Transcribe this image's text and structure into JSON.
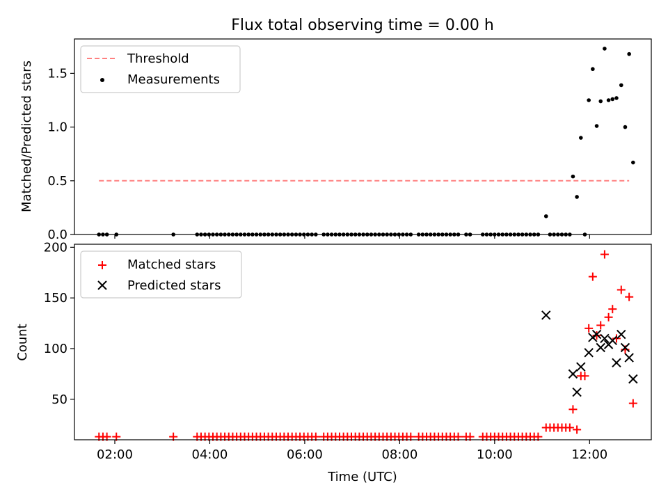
{
  "figure": {
    "title": "Flux total observing time = 0.00 h"
  },
  "chart_data": [
    {
      "type": "scatter",
      "title": "Flux total observing time = 0.00 h",
      "xlabel": "",
      "ylabel": "Matched/Predicted stars",
      "xlim": [
        "01:09",
        "13:18"
      ],
      "ylim": [
        0,
        1.82
      ],
      "xticks": [
        "02:00",
        "04:00",
        "06:00",
        "08:00",
        "10:00",
        "12:00"
      ],
      "yticks": [
        0.0,
        0.5,
        1.0,
        1.5
      ],
      "ytick_labels": [
        "0.0",
        "0.5",
        "1.0",
        "1.5"
      ],
      "grid": false,
      "legend_position": "upper left",
      "threshold": {
        "name": "Threshold",
        "value": 0.5,
        "x_start": "01:40",
        "x_end": "12:50",
        "color": "#ff8080",
        "style": "dashed"
      },
      "series": [
        {
          "name": "Measurements",
          "color": "#000000",
          "marker": "dot",
          "points": [
            [
              "01:40",
              0
            ],
            [
              "01:45",
              0
            ],
            [
              "01:50",
              0
            ],
            [
              "02:02",
              0
            ],
            [
              "03:14",
              0
            ],
            [
              "03:44",
              0
            ],
            [
              "03:49",
              0
            ],
            [
              "03:54",
              0
            ],
            [
              "03:59",
              0
            ],
            [
              "04:04",
              0
            ],
            [
              "04:09",
              0
            ],
            [
              "04:14",
              0
            ],
            [
              "04:19",
              0
            ],
            [
              "04:24",
              0
            ],
            [
              "04:29",
              0
            ],
            [
              "04:34",
              0
            ],
            [
              "04:39",
              0
            ],
            [
              "04:44",
              0
            ],
            [
              "04:49",
              0
            ],
            [
              "04:54",
              0
            ],
            [
              "04:59",
              0
            ],
            [
              "05:04",
              0
            ],
            [
              "05:09",
              0
            ],
            [
              "05:14",
              0
            ],
            [
              "05:19",
              0
            ],
            [
              "05:24",
              0
            ],
            [
              "05:29",
              0
            ],
            [
              "05:34",
              0
            ],
            [
              "05:39",
              0
            ],
            [
              "05:44",
              0
            ],
            [
              "05:49",
              0
            ],
            [
              "05:54",
              0
            ],
            [
              "05:59",
              0
            ],
            [
              "06:04",
              0
            ],
            [
              "06:09",
              0
            ],
            [
              "06:14",
              0
            ],
            [
              "06:24",
              0
            ],
            [
              "06:29",
              0
            ],
            [
              "06:34",
              0
            ],
            [
              "06:39",
              0
            ],
            [
              "06:44",
              0
            ],
            [
              "06:49",
              0
            ],
            [
              "06:54",
              0
            ],
            [
              "06:59",
              0
            ],
            [
              "07:04",
              0
            ],
            [
              "07:09",
              0
            ],
            [
              "07:14",
              0
            ],
            [
              "07:19",
              0
            ],
            [
              "07:24",
              0
            ],
            [
              "07:29",
              0
            ],
            [
              "07:34",
              0
            ],
            [
              "07:39",
              0
            ],
            [
              "07:44",
              0
            ],
            [
              "07:49",
              0
            ],
            [
              "07:54",
              0
            ],
            [
              "07:59",
              0
            ],
            [
              "08:04",
              0
            ],
            [
              "08:09",
              0
            ],
            [
              "08:14",
              0
            ],
            [
              "08:24",
              0
            ],
            [
              "08:29",
              0
            ],
            [
              "08:34",
              0
            ],
            [
              "08:39",
              0
            ],
            [
              "08:44",
              0
            ],
            [
              "08:49",
              0
            ],
            [
              "08:54",
              0
            ],
            [
              "08:59",
              0
            ],
            [
              "09:04",
              0
            ],
            [
              "09:09",
              0
            ],
            [
              "09:14",
              0
            ],
            [
              "09:24",
              0
            ],
            [
              "09:29",
              0
            ],
            [
              "09:45",
              0
            ],
            [
              "09:50",
              0
            ],
            [
              "09:55",
              0
            ],
            [
              "10:00",
              0
            ],
            [
              "10:05",
              0
            ],
            [
              "10:10",
              0
            ],
            [
              "10:15",
              0
            ],
            [
              "10:20",
              0
            ],
            [
              "10:25",
              0
            ],
            [
              "10:30",
              0
            ],
            [
              "10:35",
              0
            ],
            [
              "10:40",
              0
            ],
            [
              "10:45",
              0
            ],
            [
              "10:50",
              0
            ],
            [
              "10:55",
              0
            ],
            [
              "11:05",
              0.17
            ],
            [
              "11:10",
              0
            ],
            [
              "11:15",
              0
            ],
            [
              "11:20",
              0
            ],
            [
              "11:25",
              0
            ],
            [
              "11:30",
              0
            ],
            [
              "11:35",
              0
            ],
            [
              "11:39",
              0.54
            ],
            [
              "11:44",
              0.35
            ],
            [
              "11:49",
              0.9
            ],
            [
              "11:54",
              0
            ],
            [
              "11:59",
              1.25
            ],
            [
              "12:04",
              1.54
            ],
            [
              "12:09",
              1.01
            ],
            [
              "12:14",
              1.24
            ],
            [
              "12:19",
              1.73
            ],
            [
              "12:24",
              1.25
            ],
            [
              "12:29",
              1.26
            ],
            [
              "12:34",
              1.27
            ],
            [
              "12:40",
              1.39
            ],
            [
              "12:45",
              1.0
            ],
            [
              "12:50",
              1.68
            ],
            [
              "12:55",
              0.67
            ]
          ]
        }
      ]
    },
    {
      "type": "scatter",
      "title": "",
      "xlabel": "Time (UTC)",
      "ylabel": "Count",
      "xlim": [
        "01:09",
        "13:18"
      ],
      "ylim": [
        10,
        203
      ],
      "xticks": [
        "02:00",
        "04:00",
        "06:00",
        "08:00",
        "10:00",
        "12:00"
      ],
      "yticks": [
        50,
        100,
        150,
        200
      ],
      "grid": false,
      "legend_position": "upper left",
      "series": [
        {
          "name": "Matched stars",
          "color": "#ff0000",
          "marker": "plus",
          "points": [
            [
              "01:40",
              13
            ],
            [
              "01:45",
              13
            ],
            [
              "01:50",
              13
            ],
            [
              "02:02",
              13
            ],
            [
              "03:14",
              13
            ],
            [
              "03:44",
              13
            ],
            [
              "03:49",
              13
            ],
            [
              "03:54",
              13
            ],
            [
              "03:59",
              13
            ],
            [
              "04:04",
              13
            ],
            [
              "04:09",
              13
            ],
            [
              "04:14",
              13
            ],
            [
              "04:19",
              13
            ],
            [
              "04:24",
              13
            ],
            [
              "04:29",
              13
            ],
            [
              "04:34",
              13
            ],
            [
              "04:39",
              13
            ],
            [
              "04:44",
              13
            ],
            [
              "04:49",
              13
            ],
            [
              "04:54",
              13
            ],
            [
              "04:59",
              13
            ],
            [
              "05:04",
              13
            ],
            [
              "05:09",
              13
            ],
            [
              "05:14",
              13
            ],
            [
              "05:19",
              13
            ],
            [
              "05:24",
              13
            ],
            [
              "05:29",
              13
            ],
            [
              "05:34",
              13
            ],
            [
              "05:39",
              13
            ],
            [
              "05:44",
              13
            ],
            [
              "05:49",
              13
            ],
            [
              "05:54",
              13
            ],
            [
              "05:59",
              13
            ],
            [
              "06:04",
              13
            ],
            [
              "06:09",
              13
            ],
            [
              "06:14",
              13
            ],
            [
              "06:24",
              13
            ],
            [
              "06:29",
              13
            ],
            [
              "06:34",
              13
            ],
            [
              "06:39",
              13
            ],
            [
              "06:44",
              13
            ],
            [
              "06:49",
              13
            ],
            [
              "06:54",
              13
            ],
            [
              "06:59",
              13
            ],
            [
              "07:04",
              13
            ],
            [
              "07:09",
              13
            ],
            [
              "07:14",
              13
            ],
            [
              "07:19",
              13
            ],
            [
              "07:24",
              13
            ],
            [
              "07:29",
              13
            ],
            [
              "07:34",
              13
            ],
            [
              "07:39",
              13
            ],
            [
              "07:44",
              13
            ],
            [
              "07:49",
              13
            ],
            [
              "07:54",
              13
            ],
            [
              "07:59",
              13
            ],
            [
              "08:04",
              13
            ],
            [
              "08:09",
              13
            ],
            [
              "08:14",
              13
            ],
            [
              "08:24",
              13
            ],
            [
              "08:29",
              13
            ],
            [
              "08:34",
              13
            ],
            [
              "08:39",
              13
            ],
            [
              "08:44",
              13
            ],
            [
              "08:49",
              13
            ],
            [
              "08:54",
              13
            ],
            [
              "08:59",
              13
            ],
            [
              "09:04",
              13
            ],
            [
              "09:09",
              13
            ],
            [
              "09:14",
              13
            ],
            [
              "09:24",
              13
            ],
            [
              "09:29",
              13
            ],
            [
              "09:45",
              13
            ],
            [
              "09:50",
              13
            ],
            [
              "09:55",
              13
            ],
            [
              "10:00",
              13
            ],
            [
              "10:05",
              13
            ],
            [
              "10:10",
              13
            ],
            [
              "10:15",
              13
            ],
            [
              "10:20",
              13
            ],
            [
              "10:25",
              13
            ],
            [
              "10:30",
              13
            ],
            [
              "10:35",
              13
            ],
            [
              "10:40",
              13
            ],
            [
              "10:45",
              13
            ],
            [
              "10:50",
              13
            ],
            [
              "10:55",
              13
            ],
            [
              "11:05",
              22
            ],
            [
              "11:10",
              22
            ],
            [
              "11:15",
              22
            ],
            [
              "11:20",
              22
            ],
            [
              "11:25",
              22
            ],
            [
              "11:30",
              22
            ],
            [
              "11:35",
              22
            ],
            [
              "11:39",
              40
            ],
            [
              "11:44",
              20
            ],
            [
              "11:49",
              73
            ],
            [
              "11:54",
              73
            ],
            [
              "11:59",
              120
            ],
            [
              "12:04",
              171
            ],
            [
              "12:09",
              113
            ],
            [
              "12:14",
              123
            ],
            [
              "12:19",
              193
            ],
            [
              "12:24",
              131
            ],
            [
              "12:29",
              139
            ],
            [
              "12:34",
              110
            ],
            [
              "12:40",
              158
            ],
            [
              "12:45",
              99
            ],
            [
              "12:50",
              151
            ],
            [
              "12:55",
              46
            ]
          ]
        },
        {
          "name": "Predicted stars",
          "color": "#000000",
          "marker": "x",
          "points": [
            [
              "11:05",
              133
            ],
            [
              "11:39",
              75
            ],
            [
              "11:44",
              57
            ],
            [
              "11:49",
              82
            ],
            [
              "11:59",
              96
            ],
            [
              "12:04",
              111
            ],
            [
              "12:09",
              114
            ],
            [
              "12:14",
              101
            ],
            [
              "12:19",
              110
            ],
            [
              "12:24",
              104
            ],
            [
              "12:29",
              108
            ],
            [
              "12:34",
              86
            ],
            [
              "12:40",
              114
            ],
            [
              "12:45",
              101
            ],
            [
              "12:50",
              91
            ],
            [
              "12:55",
              70
            ]
          ]
        }
      ]
    }
  ]
}
